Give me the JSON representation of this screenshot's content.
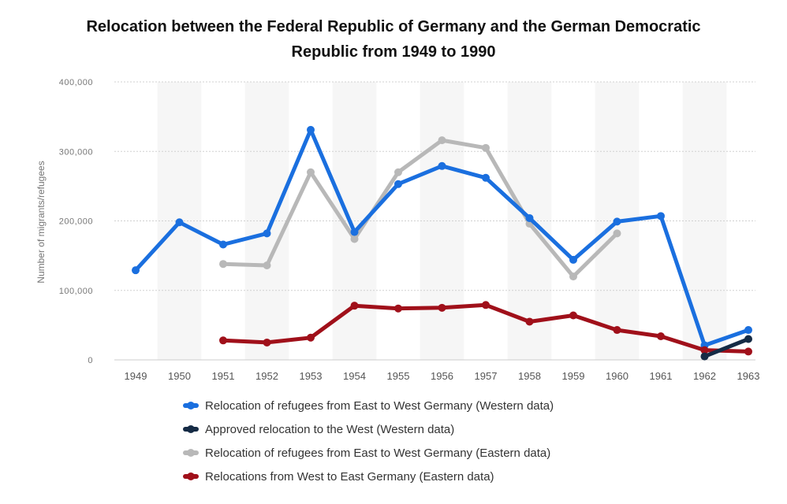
{
  "chart_data": {
    "type": "line",
    "title_line1": "Relocation between the Federal Republic of Germany and the German Democratic",
    "title_line2": "Republic from 1949 to 1990",
    "xlabel": "",
    "ylabel": "Number of migrants/refugees",
    "categories": [
      "1949",
      "1950",
      "1951",
      "1952",
      "1953",
      "1954",
      "1955",
      "1956",
      "1957",
      "1958",
      "1959",
      "1960",
      "1961",
      "1962",
      "1963"
    ],
    "ylim": [
      0,
      400000
    ],
    "yticks": [
      0,
      100000,
      200000,
      300000,
      400000
    ],
    "ytick_labels": [
      "0",
      "100,000",
      "200,000",
      "300,000",
      "400,000"
    ],
    "grid": true,
    "legend_position": "bottom",
    "series": [
      {
        "name": "Relocation of refugees from East to West Germany (Western data)",
        "color": "#1a6fdf",
        "values": [
          129000,
          198000,
          166000,
          182000,
          331000,
          184000,
          253000,
          279000,
          262000,
          204000,
          144000,
          199000,
          207000,
          21000,
          43000
        ]
      },
      {
        "name": "Approved relocation to the West (Western data)",
        "color": "#152b45",
        "values": [
          null,
          null,
          null,
          null,
          null,
          null,
          null,
          null,
          null,
          null,
          null,
          null,
          null,
          5000,
          30000
        ]
      },
      {
        "name": "Relocation of refugees from East to West Germany (Eastern data)",
        "color": "#b8b8b8",
        "values": [
          null,
          null,
          138000,
          136000,
          270000,
          174000,
          270000,
          316000,
          305000,
          196000,
          120000,
          182000,
          null,
          null,
          null
        ]
      },
      {
        "name": "Relocations from West to East Germany (Eastern data)",
        "color": "#a0101a",
        "values": [
          null,
          null,
          28000,
          25000,
          32000,
          78000,
          74000,
          75000,
          79000,
          55000,
          64000,
          43000,
          34000,
          14000,
          12000
        ]
      }
    ]
  }
}
